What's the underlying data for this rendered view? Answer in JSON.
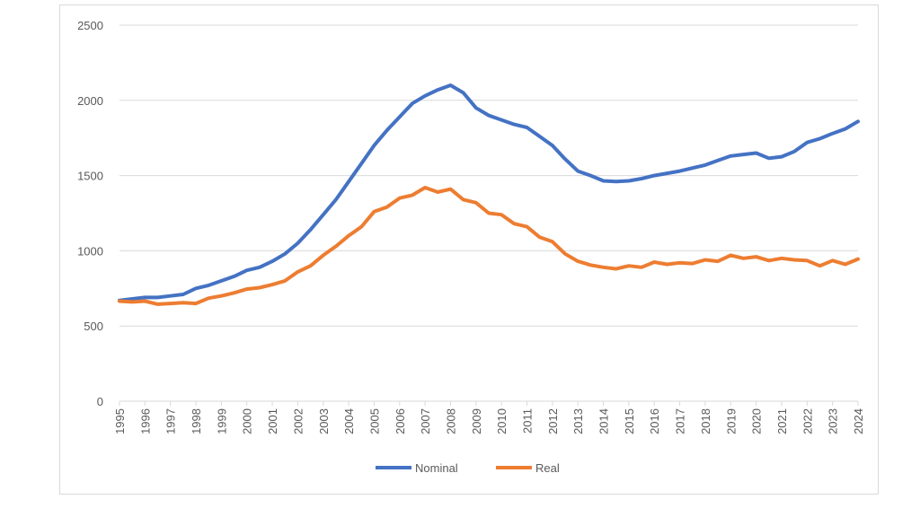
{
  "chart_data": {
    "type": "line",
    "title": "",
    "xlabel": "",
    "ylabel": "",
    "ylim": [
      0,
      2500
    ],
    "yticks": [
      0,
      500,
      1000,
      1500,
      2000,
      2500
    ],
    "xlim": [
      1995,
      2024
    ],
    "xticks": [
      "1995",
      "1996",
      "1997",
      "1998",
      "1999",
      "2000",
      "2001",
      "2002",
      "2003",
      "2004",
      "2005",
      "2006",
      "2007",
      "2008",
      "2009",
      "2010",
      "2011",
      "2012",
      "2013",
      "2014",
      "2015",
      "2016",
      "2017",
      "2018",
      "2019",
      "2020",
      "2021",
      "2022",
      "2023",
      "2024"
    ],
    "grid": "horizontal",
    "legend_position": "bottom",
    "x": [
      1995,
      1995.5,
      1996,
      1996.5,
      1997,
      1997.5,
      1998,
      1998.5,
      1999,
      1999.5,
      2000,
      2000.5,
      2001,
      2001.5,
      2002,
      2002.5,
      2003,
      2003.5,
      2004,
      2004.5,
      2005,
      2005.5,
      2006,
      2006.5,
      2007,
      2007.5,
      2008,
      2008.5,
      2009,
      2009.5,
      2010,
      2010.5,
      2011,
      2011.5,
      2012,
      2012.5,
      2013,
      2013.5,
      2014,
      2014.5,
      2015,
      2015.5,
      2016,
      2016.5,
      2017,
      2017.5,
      2018,
      2018.5,
      2019,
      2019.5,
      2020,
      2020.5,
      2021,
      2021.5,
      2022,
      2022.5,
      2023,
      2023.5,
      2024
    ],
    "series": [
      {
        "name": "Nominal",
        "color": "#4472c4",
        "values": [
          670,
          680,
          690,
          690,
          700,
          710,
          750,
          770,
          800,
          830,
          870,
          890,
          930,
          980,
          1050,
          1140,
          1240,
          1340,
          1460,
          1580,
          1700,
          1800,
          1890,
          1980,
          2030,
          2070,
          2100,
          2050,
          1950,
          1900,
          1870,
          1840,
          1820,
          1760,
          1700,
          1610,
          1530,
          1500,
          1465,
          1460,
          1465,
          1480,
          1500,
          1515,
          1530,
          1550,
          1570,
          1600,
          1630,
          1640,
          1650,
          1615,
          1625,
          1660,
          1720,
          1745,
          1780,
          1810,
          1860
        ]
      },
      {
        "name": "Real",
        "color": "#ed7d31",
        "values": [
          665,
          660,
          665,
          645,
          650,
          655,
          650,
          685,
          700,
          720,
          745,
          755,
          775,
          800,
          860,
          900,
          970,
          1030,
          1100,
          1160,
          1260,
          1290,
          1350,
          1370,
          1420,
          1390,
          1410,
          1340,
          1320,
          1250,
          1240,
          1180,
          1160,
          1090,
          1060,
          980,
          930,
          905,
          890,
          880,
          900,
          890,
          925,
          910,
          920,
          915,
          940,
          930,
          970,
          950,
          960,
          935,
          950,
          940,
          935,
          900,
          935,
          910,
          945
        ]
      }
    ]
  }
}
